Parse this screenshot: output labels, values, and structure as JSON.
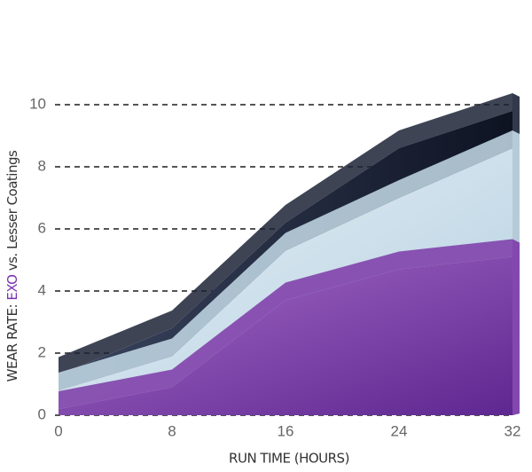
{
  "chart_data": {
    "type": "area3d",
    "xlabel": "RUN TIME (HOURS)",
    "ylabel_parts": [
      "WEAR RATE:",
      "EXO",
      "vs. Lesser Coatings"
    ],
    "ylabel_colors": [
      "#333333",
      "#7a2fb0",
      "#333333"
    ],
    "x": [
      0,
      8,
      16,
      24,
      32
    ],
    "series": [
      {
        "color": "#1c2336",
        "values": [
          1.3,
          2.8,
          6.2,
          8.6,
          9.8
        ]
      },
      {
        "color": "#c4dbe8",
        "values": [
          0.8,
          1.9,
          5.3,
          7.0,
          8.6
        ]
      },
      {
        "color": "#7d3aa8",
        "values": [
          0.2,
          0.9,
          3.7,
          4.7,
          5.1
        ]
      }
    ],
    "xlim": [
      0,
      32
    ],
    "xticks": [
      0,
      8,
      16,
      24,
      32
    ],
    "ylim": [
      0,
      10
    ],
    "yticks": [
      0,
      2,
      4,
      6,
      8,
      10
    ],
    "grid": true
  }
}
